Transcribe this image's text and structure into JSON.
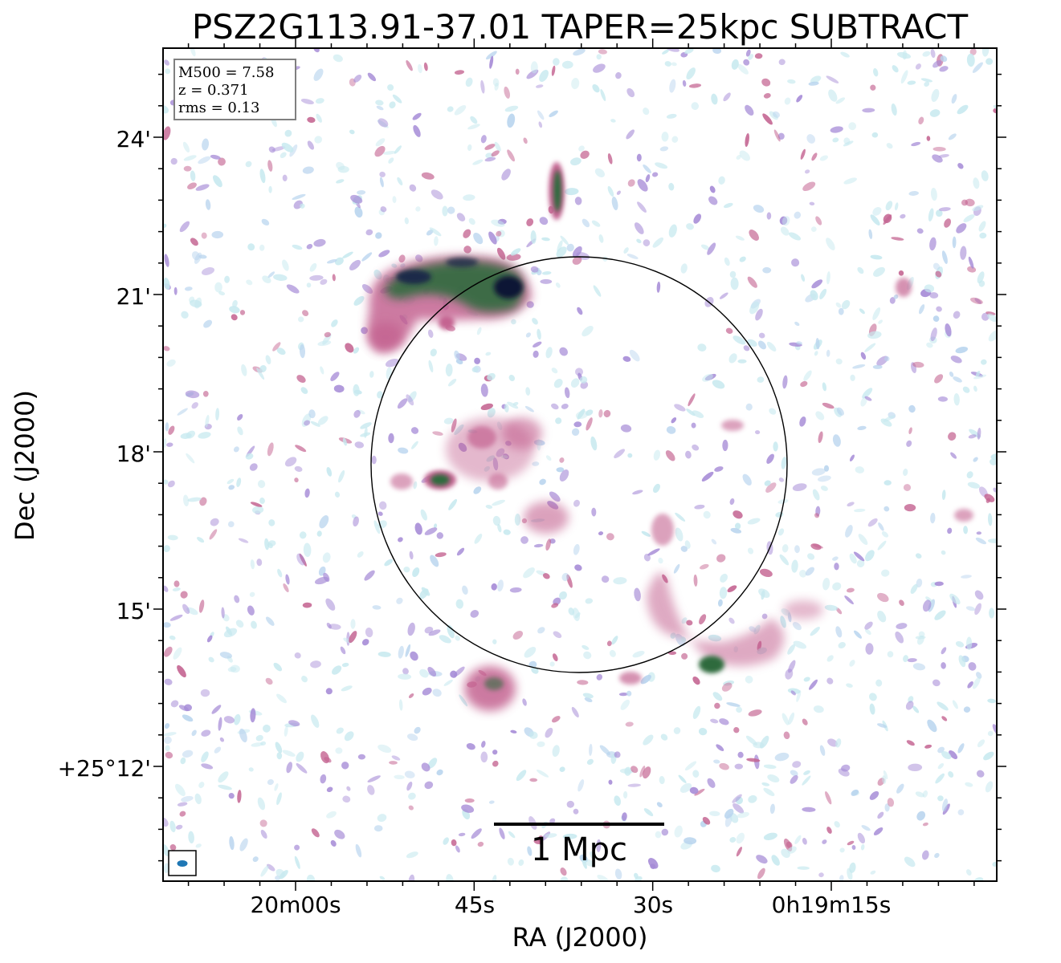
{
  "chart_data": {
    "type": "heatmap",
    "title": "PSZ2G113.91-37.01 TAPER=25kpc SUBTRACT",
    "xlabel": "RA (J2000)",
    "ylabel": "Dec (J2000)",
    "x_ticks": [
      "20m00s",
      "45s",
      "30s",
      "0h19m15s"
    ],
    "y_ticks": [
      "24'",
      "21'",
      "18'",
      "15'",
      "+25°12'"
    ],
    "info": {
      "line1": "M500 = 7.58",
      "line2": "z = 0.371",
      "line3": "rms = 0.13"
    },
    "scalebar_label": "1 Mpc",
    "colormap": "cubehelix_r",
    "colors": {
      "low": "#c7e9ef",
      "mid": "#a58ad6",
      "high": "#c46491",
      "peak": "#2e6b3d",
      "max": "#0d1535"
    },
    "sources": [
      {
        "name": "northern-arc-relic",
        "intensity": "very high"
      },
      {
        "name": "northern-compact-source",
        "intensity": "high"
      },
      {
        "name": "central-diffuse-emission",
        "intensity": "medium"
      },
      {
        "name": "compact-source-west",
        "intensity": "high"
      },
      {
        "name": "southern-source",
        "intensity": "medium"
      },
      {
        "name": "southeast-filament",
        "intensity": "medium"
      }
    ]
  }
}
